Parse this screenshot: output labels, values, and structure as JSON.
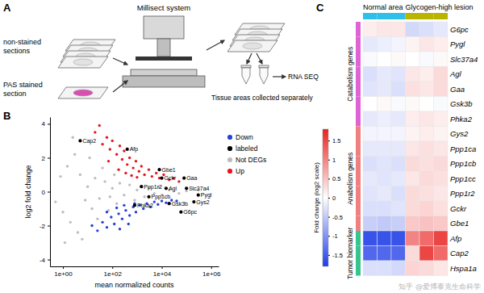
{
  "diagram": {
    "panel_label": "A",
    "machine_label": "Millisect system",
    "unstained_label": [
      "non-stained",
      "sections"
    ],
    "stained_label": [
      "PAS stained",
      "section"
    ],
    "collect_label": "Tissue areas collected separately",
    "output_label": "RNA SEQ"
  },
  "chart_data": [
    {
      "type": "scatter",
      "panel_label": "B",
      "log": "x",
      "xlabel": "mean normalized counts",
      "ylabel": "log2 fold change",
      "xlim": [
        0.3,
        2000000
      ],
      "ylim": [
        -4.4,
        4.4
      ],
      "xticks": [
        {
          "value": 1,
          "label": "1e+00"
        },
        {
          "value": 100,
          "label": "1e+02"
        },
        {
          "value": 10000,
          "label": "1e+04"
        },
        {
          "value": 1000000,
          "label": "1e+06"
        }
      ],
      "yticks": [
        -4,
        -2,
        0,
        2,
        4
      ],
      "legend": "right",
      "series": [
        {
          "name": "Down",
          "color": "#2541d6",
          "marker": "circle",
          "x": [
            15,
            25,
            40,
            60,
            90,
            120,
            180,
            250,
            350,
            500,
            700,
            900,
            1300,
            1800,
            2500,
            3500,
            5000,
            7000,
            10000,
            15000,
            25000,
            40000,
            60,
            150,
            300,
            800,
            200,
            450
          ],
          "values": [
            -2,
            -2.3,
            -1.8,
            -2.1,
            -1.5,
            -1.9,
            -1.3,
            -1.6,
            -1.1,
            -1.4,
            -0.9,
            -1.2,
            -0.8,
            -1,
            -0.7,
            -0.9,
            -0.6,
            -0.75,
            -0.55,
            -0.65,
            -0.5,
            -0.55,
            -1.2,
            -0.95,
            -0.8,
            -0.7,
            -2.2,
            -1.9
          ]
        },
        {
          "name": "labeled",
          "color": "#000000",
          "marker": "circle",
          "x": [
            5,
            400,
            8000,
            10000,
            80000,
            1500,
            15000,
            100000,
            3000,
            300000,
            800,
            20000,
            200000,
            60000
          ],
          "values": [
            3,
            2.5,
            1.3,
            0.8,
            0.8,
            0.3,
            0.2,
            0.2,
            -0.3,
            -0.2,
            -0.8,
            -0.7,
            -0.6,
            -1.2
          ],
          "labels": [
            "Cap2",
            "Afp",
            "Gbe1",
            "Gckr",
            "Gaa",
            "Ppp1r2",
            "Agl",
            "Slc37a4",
            "Ppp1cb",
            "Pygl",
            "Phka2",
            "Gsk3b",
            "Gys2",
            "G6pc"
          ]
        },
        {
          "name": "Not DEGs",
          "color": "#bdbdbd",
          "marker": "circle",
          "x": [
            0.5,
            0.8,
            1,
            1.5,
            2,
            3,
            4,
            5,
            8,
            10,
            15,
            20,
            30,
            50,
            80,
            100,
            150,
            200,
            300,
            500,
            800,
            1000,
            1500,
            2000,
            3000,
            5000,
            8000,
            10000,
            20000,
            50000,
            100000,
            300000,
            1.2,
            2.5,
            6,
            12,
            25,
            40,
            70,
            120
          ],
          "values": [
            -0.6,
            0.9,
            -1.2,
            1.5,
            -1.8,
            2.2,
            -2.4,
            1,
            -0.5,
            0.3,
            -1,
            0.8,
            -0.4,
            0.6,
            -0.3,
            0.2,
            -0.7,
            0.5,
            -0.2,
            0.4,
            -0.5,
            0.1,
            0.3,
            -0.3,
            0.2,
            -0.1,
            0.25,
            -0.2,
            0.1,
            -0.1,
            0.05,
            0.1,
            -3,
            3.2,
            -2.8,
            2,
            -1.6,
            1.4,
            -1.1,
            1
          ]
        },
        {
          "name": "Up",
          "color": "#e8141c",
          "marker": "circle",
          "x": [
            20,
            30,
            40,
            60,
            80,
            100,
            150,
            200,
            250,
            300,
            400,
            500,
            700,
            900,
            1200,
            1500,
            2000,
            3000,
            4000,
            6000,
            8000,
            12000,
            20000,
            30000,
            50000,
            70,
            180,
            350,
            600,
            1000
          ],
          "values": [
            3.5,
            3.9,
            2.8,
            3.2,
            2.5,
            3,
            2.2,
            2.7,
            1.9,
            2.4,
            1.6,
            2,
            1.4,
            1.8,
            1.2,
            1.5,
            1,
            1.3,
            0.9,
            1.1,
            0.8,
            1,
            0.7,
            0.8,
            0.6,
            1.8,
            1.3,
            1.1,
            0.95,
            0.85
          ]
        }
      ]
    },
    {
      "type": "heatmap",
      "panel_label": "C",
      "column_groups": [
        0,
        0,
        0,
        1,
        1,
        1
      ],
      "column_group_labels": [
        "Normal area",
        "Glycogen-high lesion"
      ],
      "column_group_colors": [
        "#2ec0e8",
        "#b8b400"
      ],
      "rows": [
        "G6pc",
        "Pygl",
        "Slc37a4",
        "Agl",
        "Gaa",
        "Gsk3b",
        "Phka2",
        "Gys2",
        "Ppp1ca",
        "Ppp1cb",
        "Ppp1cc",
        "Ppp1r2",
        "Gckr",
        "Gbe1",
        "Afp",
        "Cap2",
        "Hspa1a"
      ],
      "row_groups": [
        0,
        0,
        0,
        0,
        0,
        0,
        0,
        1,
        1,
        1,
        1,
        1,
        1,
        1,
        2,
        2,
        2
      ],
      "row_group_labels": [
        "Catabolism genes",
        "Anabolism genes",
        "Tumor biomarker"
      ],
      "row_group_colors": [
        "#e063d6",
        "#f07f7f",
        "#37c58d"
      ],
      "cells": [
        [
          0.15,
          0.2,
          0.2,
          -0.35,
          -0.3,
          -0.2
        ],
        [
          -0.2,
          -0.15,
          -0.1,
          0.1,
          0.2,
          0.15
        ],
        [
          -0.05,
          0,
          0.05,
          0,
          -0.05,
          0.05
        ],
        [
          -0.3,
          -0.2,
          -0.25,
          0.2,
          0.15,
          0.3
        ],
        [
          -0.25,
          -0.2,
          -0.3,
          0.25,
          0.2,
          0.3
        ],
        [
          0,
          0.05,
          -0.05,
          0.05,
          0,
          -0.05
        ],
        [
          -0.2,
          -0.15,
          -0.2,
          0.15,
          0.2,
          0.15
        ],
        [
          -0.1,
          -0.1,
          -0.1,
          0.1,
          0.15,
          0.1
        ],
        [
          -0.2,
          -0.2,
          -0.2,
          0.2,
          0.25,
          0.2
        ],
        [
          -0.3,
          -0.25,
          -0.3,
          0.3,
          0.25,
          0.3
        ],
        [
          -0.2,
          -0.25,
          -0.2,
          0.2,
          0.3,
          0.25
        ],
        [
          -0.25,
          -0.2,
          -0.3,
          0.3,
          0.25,
          0.2
        ],
        [
          -0.3,
          -0.3,
          -0.25,
          0.3,
          0.35,
          0.25
        ],
        [
          -0.45,
          -0.5,
          -0.45,
          0.45,
          0.5,
          0.45
        ],
        [
          -1.6,
          -1.6,
          -1.6,
          1,
          1.2,
          1.5
        ],
        [
          -1.4,
          -1.4,
          -1.4,
          0.3,
          1.5,
          1.2
        ],
        [
          -0.3,
          -0.3,
          -0.35,
          0.35,
          0.3,
          0.2
        ]
      ],
      "colorbar": {
        "title": "Fold change (log2 scale)",
        "range": [
          -1.8,
          1.8
        ],
        "ticks": [
          -1.5,
          -1,
          -0.5,
          0,
          0.5,
          1,
          1.5
        ],
        "colors": [
          "#1f3de6",
          "#ffffff",
          "#e8211f"
        ]
      }
    }
  ],
  "watermark": "知乎 @爱博泰克生命科学"
}
